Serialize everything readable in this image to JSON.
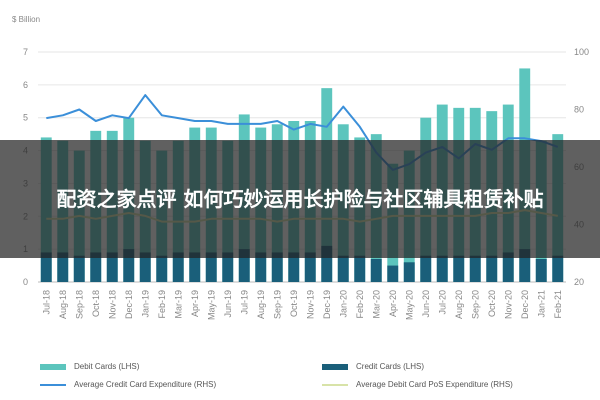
{
  "chart_data": {
    "type": "bar",
    "unit_label": "$ Billion",
    "categories": [
      "Jul-18",
      "Aug-18",
      "Sep-18",
      "Oct-18",
      "Nov-18",
      "Dec-18",
      "Jan-19",
      "Feb-19",
      "Mar-19",
      "Apr-19",
      "May-19",
      "Jun-19",
      "Jul-19",
      "Aug-19",
      "Sep-19",
      "Oct-19",
      "Nov-19",
      "Dec-19",
      "Jan-20",
      "Feb-20",
      "Mar-20",
      "Apr-20",
      "May-20",
      "Jun-20",
      "Jul-20",
      "Aug-20",
      "Sep-20",
      "Oct-20",
      "Nov-20",
      "Dec-20",
      "Jan-21",
      "Feb-21"
    ],
    "ylim": [
      0,
      7
    ],
    "y_ticks": [
      "0",
      "1",
      "2",
      "3",
      "4",
      "5",
      "6",
      "7"
    ],
    "y2lim": [
      20,
      100
    ],
    "y2_ticks": [
      "20",
      "40",
      "60",
      "80",
      "100"
    ],
    "series": [
      {
        "name": "Debit Cards (LHS)",
        "type": "bar",
        "axis": "left",
        "color": "#5cc5bd",
        "values": [
          4.4,
          4.3,
          4.0,
          4.6,
          4.6,
          5.0,
          4.3,
          4.0,
          4.3,
          4.7,
          4.7,
          4.3,
          5.1,
          4.7,
          4.8,
          4.9,
          4.9,
          5.9,
          4.8,
          4.4,
          4.5,
          3.6,
          4.0,
          5.0,
          5.4,
          5.3,
          5.3,
          5.2,
          5.4,
          6.5,
          4.3,
          4.5
        ]
      },
      {
        "name": "Credit Cards (LHS)",
        "type": "bar",
        "axis": "left",
        "color": "#1a5f7a",
        "values": [
          0.9,
          0.9,
          0.8,
          0.9,
          0.9,
          1.0,
          0.9,
          0.8,
          0.9,
          0.9,
          0.9,
          0.9,
          1.0,
          0.9,
          0.9,
          0.9,
          0.9,
          1.1,
          0.8,
          0.8,
          0.7,
          0.5,
          0.6,
          0.8,
          0.8,
          0.8,
          0.8,
          0.8,
          0.9,
          1.0,
          0.7,
          0.8
        ]
      },
      {
        "name": "Average Credit Card Expenditure (RHS)",
        "type": "line",
        "axis": "right",
        "color": "#3b8fd9",
        "values": [
          77,
          78,
          80,
          76,
          78,
          77,
          85,
          78,
          77,
          76,
          76,
          75,
          75,
          75,
          76,
          73,
          75,
          74,
          81,
          74,
          65,
          59,
          61,
          65,
          67,
          63,
          68,
          66,
          70,
          70,
          69,
          67
        ]
      },
      {
        "name": "Average Debit Card PoS Expenditure (RHS)",
        "type": "line",
        "axis": "right",
        "color": "#d8e3a8",
        "values": [
          42,
          42,
          43,
          42,
          43,
          44,
          43,
          41,
          41,
          41,
          42,
          42,
          42,
          42,
          41,
          42,
          42,
          42,
          42,
          41,
          42,
          43,
          43,
          43,
          43,
          43,
          43,
          44,
          44,
          45,
          44,
          43
        ]
      }
    ]
  },
  "overlay": {
    "text": "配资之家点评 如何巧妙运用长护险与社区辅具租赁补贴"
  }
}
